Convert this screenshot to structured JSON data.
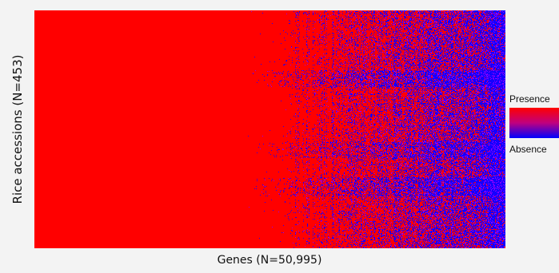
{
  "chart_data": {
    "type": "heatmap",
    "title": "",
    "xlabel": "Genes (N=50,995)",
    "ylabel": "Rice accessions (N=453)",
    "legend": {
      "placement": "right",
      "high_label": "Presence",
      "low_label": "Absence",
      "high_color": "#ff0000",
      "low_color": "#0000ff"
    },
    "colors": {
      "presence": "#ff0000",
      "absence": "#0000ff"
    },
    "grid": false
  }
}
